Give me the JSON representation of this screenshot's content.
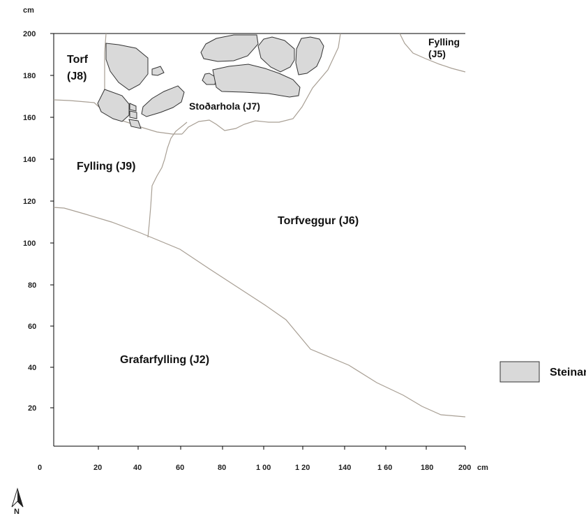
{
  "axes": {
    "y_unit": "cm",
    "x_unit": "cm",
    "origin_label": "0",
    "y_ticks": [
      "200",
      "180",
      "160",
      "140",
      "120",
      "100",
      "80",
      "60",
      "40",
      "20"
    ],
    "x_ticks": [
      "20",
      "40",
      "60",
      "80",
      "1 00",
      "1 20",
      "140",
      "1 60",
      "180",
      "200"
    ]
  },
  "regions": {
    "torf": "Torf",
    "torf_id": "(J8)",
    "fylling_top": "Fylling",
    "fylling_top_id": "(J5)",
    "stodarhola": "Stoðarhola (J7)",
    "fylling_j9": "Fylling (J9)",
    "torfveggur": "Torfveggur (J6)",
    "grafarfylling": "Grafarfylling (J2)"
  },
  "legend": {
    "label": "Steinar",
    "swatch_color": "#d9d9d9"
  },
  "north_arrow": {
    "label": "N"
  }
}
